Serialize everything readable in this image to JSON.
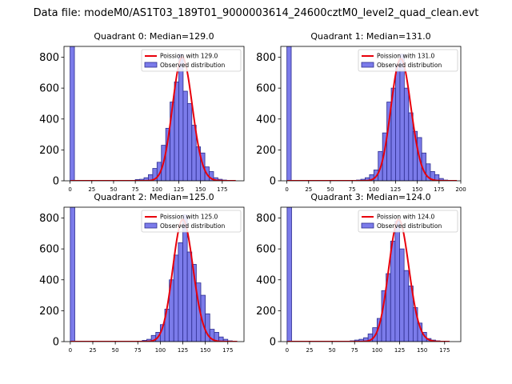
{
  "figure": {
    "suptitle": "Data file: modeM0/AS1T03_189T01_9000003614_24600cztM0_level2_quad_clean.evt"
  },
  "colors": {
    "bar_fill": "#7b7bea",
    "bar_edge": "#2d2d8f",
    "fit_line": "#e8000b"
  },
  "chart_data": [
    {
      "type": "bar",
      "title": "Quadrant 0: Median=129.0",
      "xlim": [
        -7,
        200
      ],
      "ylim": [
        0,
        870
      ],
      "xticks": [
        0,
        25,
        50,
        75,
        100,
        125,
        150,
        175
      ],
      "yticks": [
        0,
        200,
        400,
        600,
        800
      ],
      "bin_width": 5,
      "bins": [
        {
          "x": 0,
          "count": 870
        },
        {
          "x": 75,
          "count": 8
        },
        {
          "x": 80,
          "count": 10
        },
        {
          "x": 85,
          "count": 20
        },
        {
          "x": 90,
          "count": 40
        },
        {
          "x": 95,
          "count": 80
        },
        {
          "x": 100,
          "count": 120
        },
        {
          "x": 105,
          "count": 230
        },
        {
          "x": 110,
          "count": 340
        },
        {
          "x": 115,
          "count": 510
        },
        {
          "x": 120,
          "count": 640
        },
        {
          "x": 125,
          "count": 820
        },
        {
          "x": 130,
          "count": 580
        },
        {
          "x": 135,
          "count": 500
        },
        {
          "x": 140,
          "count": 360
        },
        {
          "x": 145,
          "count": 220
        },
        {
          "x": 150,
          "count": 180
        },
        {
          "x": 155,
          "count": 90
        },
        {
          "x": 160,
          "count": 60
        },
        {
          "x": 165,
          "count": 20
        },
        {
          "x": 170,
          "count": 10
        },
        {
          "x": 175,
          "count": 5
        }
      ],
      "fit": {
        "label": "Poission with 129.0",
        "mean": 129.0,
        "peak": 800,
        "x_range": [
          0,
          190
        ]
      },
      "legend": {
        "position": "upper right",
        "fit_label": "Poission with 129.0",
        "observed_label": "Observed distribution"
      }
    },
    {
      "type": "bar",
      "title": "Quadrant 1: Median=131.0",
      "xlim": [
        -7,
        200
      ],
      "ylim": [
        0,
        870
      ],
      "xticks": [
        0,
        25,
        50,
        75,
        100,
        125,
        150,
        175,
        200
      ],
      "yticks": [
        0,
        200,
        400,
        600,
        800
      ],
      "bin_width": 5,
      "bins": [
        {
          "x": 0,
          "count": 870
        },
        {
          "x": 80,
          "count": 5
        },
        {
          "x": 85,
          "count": 10
        },
        {
          "x": 90,
          "count": 20
        },
        {
          "x": 95,
          "count": 40
        },
        {
          "x": 100,
          "count": 70
        },
        {
          "x": 105,
          "count": 190
        },
        {
          "x": 110,
          "count": 310
        },
        {
          "x": 115,
          "count": 510
        },
        {
          "x": 120,
          "count": 600
        },
        {
          "x": 125,
          "count": 750
        },
        {
          "x": 130,
          "count": 820
        },
        {
          "x": 135,
          "count": 600
        },
        {
          "x": 140,
          "count": 440
        },
        {
          "x": 145,
          "count": 320
        },
        {
          "x": 150,
          "count": 280
        },
        {
          "x": 155,
          "count": 180
        },
        {
          "x": 160,
          "count": 110
        },
        {
          "x": 165,
          "count": 60
        },
        {
          "x": 170,
          "count": 40
        },
        {
          "x": 175,
          "count": 15
        },
        {
          "x": 180,
          "count": 5
        }
      ],
      "fit": {
        "label": "Poission with 131.0",
        "mean": 131.0,
        "peak": 790,
        "x_range": [
          0,
          195
        ]
      },
      "legend": {
        "position": "upper right",
        "fit_label": "Poission with 131.0",
        "observed_label": "Observed distribution"
      }
    },
    {
      "type": "bar",
      "title": "Quadrant 2: Median=125.0",
      "xlim": [
        -7,
        193
      ],
      "ylim": [
        0,
        870
      ],
      "xticks": [
        0,
        25,
        50,
        75,
        100,
        125,
        150,
        175
      ],
      "yticks": [
        0,
        200,
        400,
        600,
        800
      ],
      "bin_width": 5,
      "bins": [
        {
          "x": 0,
          "count": 870
        },
        {
          "x": 80,
          "count": 8
        },
        {
          "x": 85,
          "count": 15
        },
        {
          "x": 90,
          "count": 40
        },
        {
          "x": 95,
          "count": 60
        },
        {
          "x": 100,
          "count": 110
        },
        {
          "x": 105,
          "count": 210
        },
        {
          "x": 110,
          "count": 400
        },
        {
          "x": 115,
          "count": 560
        },
        {
          "x": 120,
          "count": 640
        },
        {
          "x": 125,
          "count": 820
        },
        {
          "x": 130,
          "count": 580
        },
        {
          "x": 135,
          "count": 500
        },
        {
          "x": 140,
          "count": 380
        },
        {
          "x": 145,
          "count": 300
        },
        {
          "x": 150,
          "count": 180
        },
        {
          "x": 155,
          "count": 80
        },
        {
          "x": 160,
          "count": 60
        },
        {
          "x": 165,
          "count": 30
        },
        {
          "x": 170,
          "count": 15
        },
        {
          "x": 175,
          "count": 5
        }
      ],
      "fit": {
        "label": "Poission with 125.0",
        "mean": 125.0,
        "peak": 790,
        "x_range": [
          0,
          185
        ]
      },
      "legend": {
        "position": "upper right",
        "fit_label": "Poission with 125.0",
        "observed_label": "Observed distribution"
      }
    },
    {
      "type": "bar",
      "title": "Quadrant 3: Median=124.0",
      "xlim": [
        -7,
        193
      ],
      "ylim": [
        0,
        870
      ],
      "xticks": [
        0,
        25,
        50,
        75,
        100,
        125,
        150,
        175
      ],
      "yticks": [
        0,
        200,
        400,
        600,
        800
      ],
      "bin_width": 5,
      "bins": [
        {
          "x": 0,
          "count": 870
        },
        {
          "x": 70,
          "count": 5
        },
        {
          "x": 75,
          "count": 10
        },
        {
          "x": 80,
          "count": 15
        },
        {
          "x": 85,
          "count": 25
        },
        {
          "x": 90,
          "count": 50
        },
        {
          "x": 95,
          "count": 90
        },
        {
          "x": 100,
          "count": 150
        },
        {
          "x": 105,
          "count": 330
        },
        {
          "x": 110,
          "count": 440
        },
        {
          "x": 115,
          "count": 650
        },
        {
          "x": 120,
          "count": 780
        },
        {
          "x": 125,
          "count": 600
        },
        {
          "x": 130,
          "count": 460
        },
        {
          "x": 135,
          "count": 360
        },
        {
          "x": 140,
          "count": 220
        },
        {
          "x": 145,
          "count": 120
        },
        {
          "x": 150,
          "count": 60
        },
        {
          "x": 155,
          "count": 20
        },
        {
          "x": 160,
          "count": 10
        },
        {
          "x": 165,
          "count": 5
        }
      ],
      "fit": {
        "label": "Poission with 124.0",
        "mean": 124.0,
        "peak": 790,
        "x_range": [
          0,
          180
        ]
      },
      "legend": {
        "position": "upper right",
        "fit_label": "Poission with 124.0",
        "observed_label": "Observed distribution"
      }
    }
  ]
}
